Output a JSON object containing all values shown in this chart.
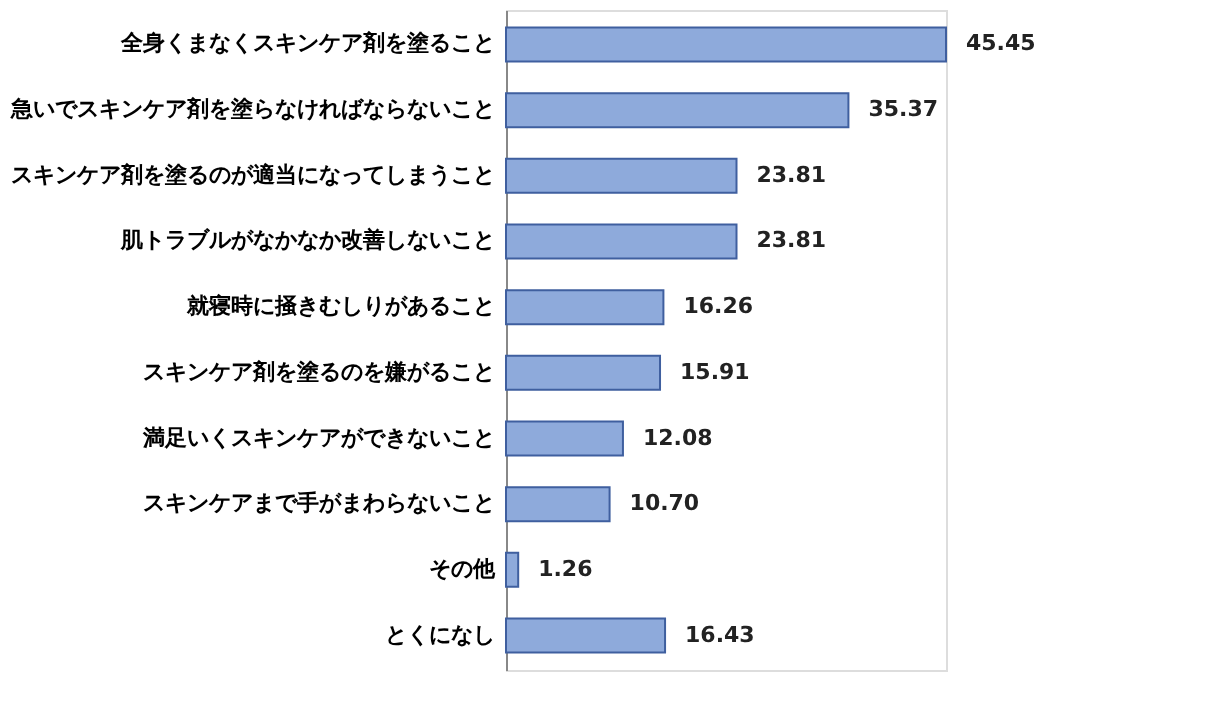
{
  "chart_data": {
    "type": "bar",
    "orientation": "horizontal",
    "grid": false,
    "categories": [
      "全身くまなくスキンケア剤を塗ること",
      "急いでスキンケア剤を塗らなければならないこと",
      "スキンケア剤を塗るのが適当になってしまうこと",
      "肌トラブルがなかなか改善しないこと",
      "就寝時に掻きむしりがあること",
      "スキンケア剤を塗るのを嫌がること",
      "満足いくスキンケアができないこと",
      "スキンケアまで手がまわらないこと",
      "その他",
      "とくになし"
    ],
    "series": [
      {
        "color": "#8eaadb",
        "values": [
          45.45,
          35.37,
          23.81,
          23.81,
          16.26,
          15.91,
          12.08,
          10.7,
          1.26,
          16.43
        ],
        "value_labels": [
          "45.45",
          "35.37",
          "23.81",
          "23.81",
          "16.26",
          "15.91",
          "12.08",
          "10.70",
          "1.26",
          "16.43"
        ]
      }
    ]
  }
}
